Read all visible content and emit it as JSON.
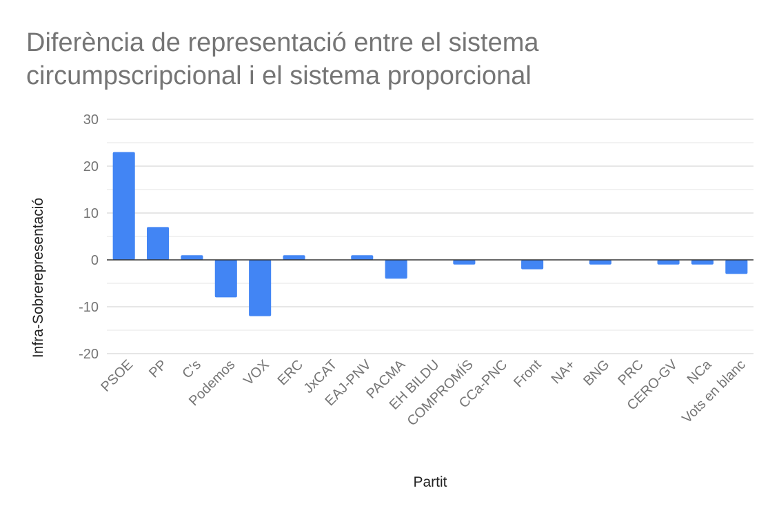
{
  "chart_data": {
    "type": "bar",
    "title": "Diferència de representació entre el sistema circumpscripcional i el sistema proporcional",
    "xlabel": "Partit",
    "ylabel": "Infra-Sobrerepresentació",
    "ylim": [
      -20,
      30
    ],
    "yticks": [
      30,
      20,
      10,
      0,
      -10,
      -20
    ],
    "grid": true,
    "legend": "none",
    "bar_color": "#4285f4",
    "categories": [
      "PSOE",
      "PP",
      "C's",
      "Podemos",
      "VOX",
      "ERC",
      "JxCAT",
      "EAJ-PNV",
      "PACMA",
      "EH BILDU",
      "COMPROMÍS",
      "CCa-PNC",
      "Front",
      "NA+",
      "BNG",
      "PRC",
      "CERO-GV",
      "NCa",
      "Vots en blanc"
    ],
    "values": [
      23,
      7,
      1,
      -8,
      -12,
      1,
      0,
      1,
      -4,
      0,
      -1,
      0,
      -2,
      0,
      -1,
      0,
      -1,
      -1,
      -3
    ]
  }
}
